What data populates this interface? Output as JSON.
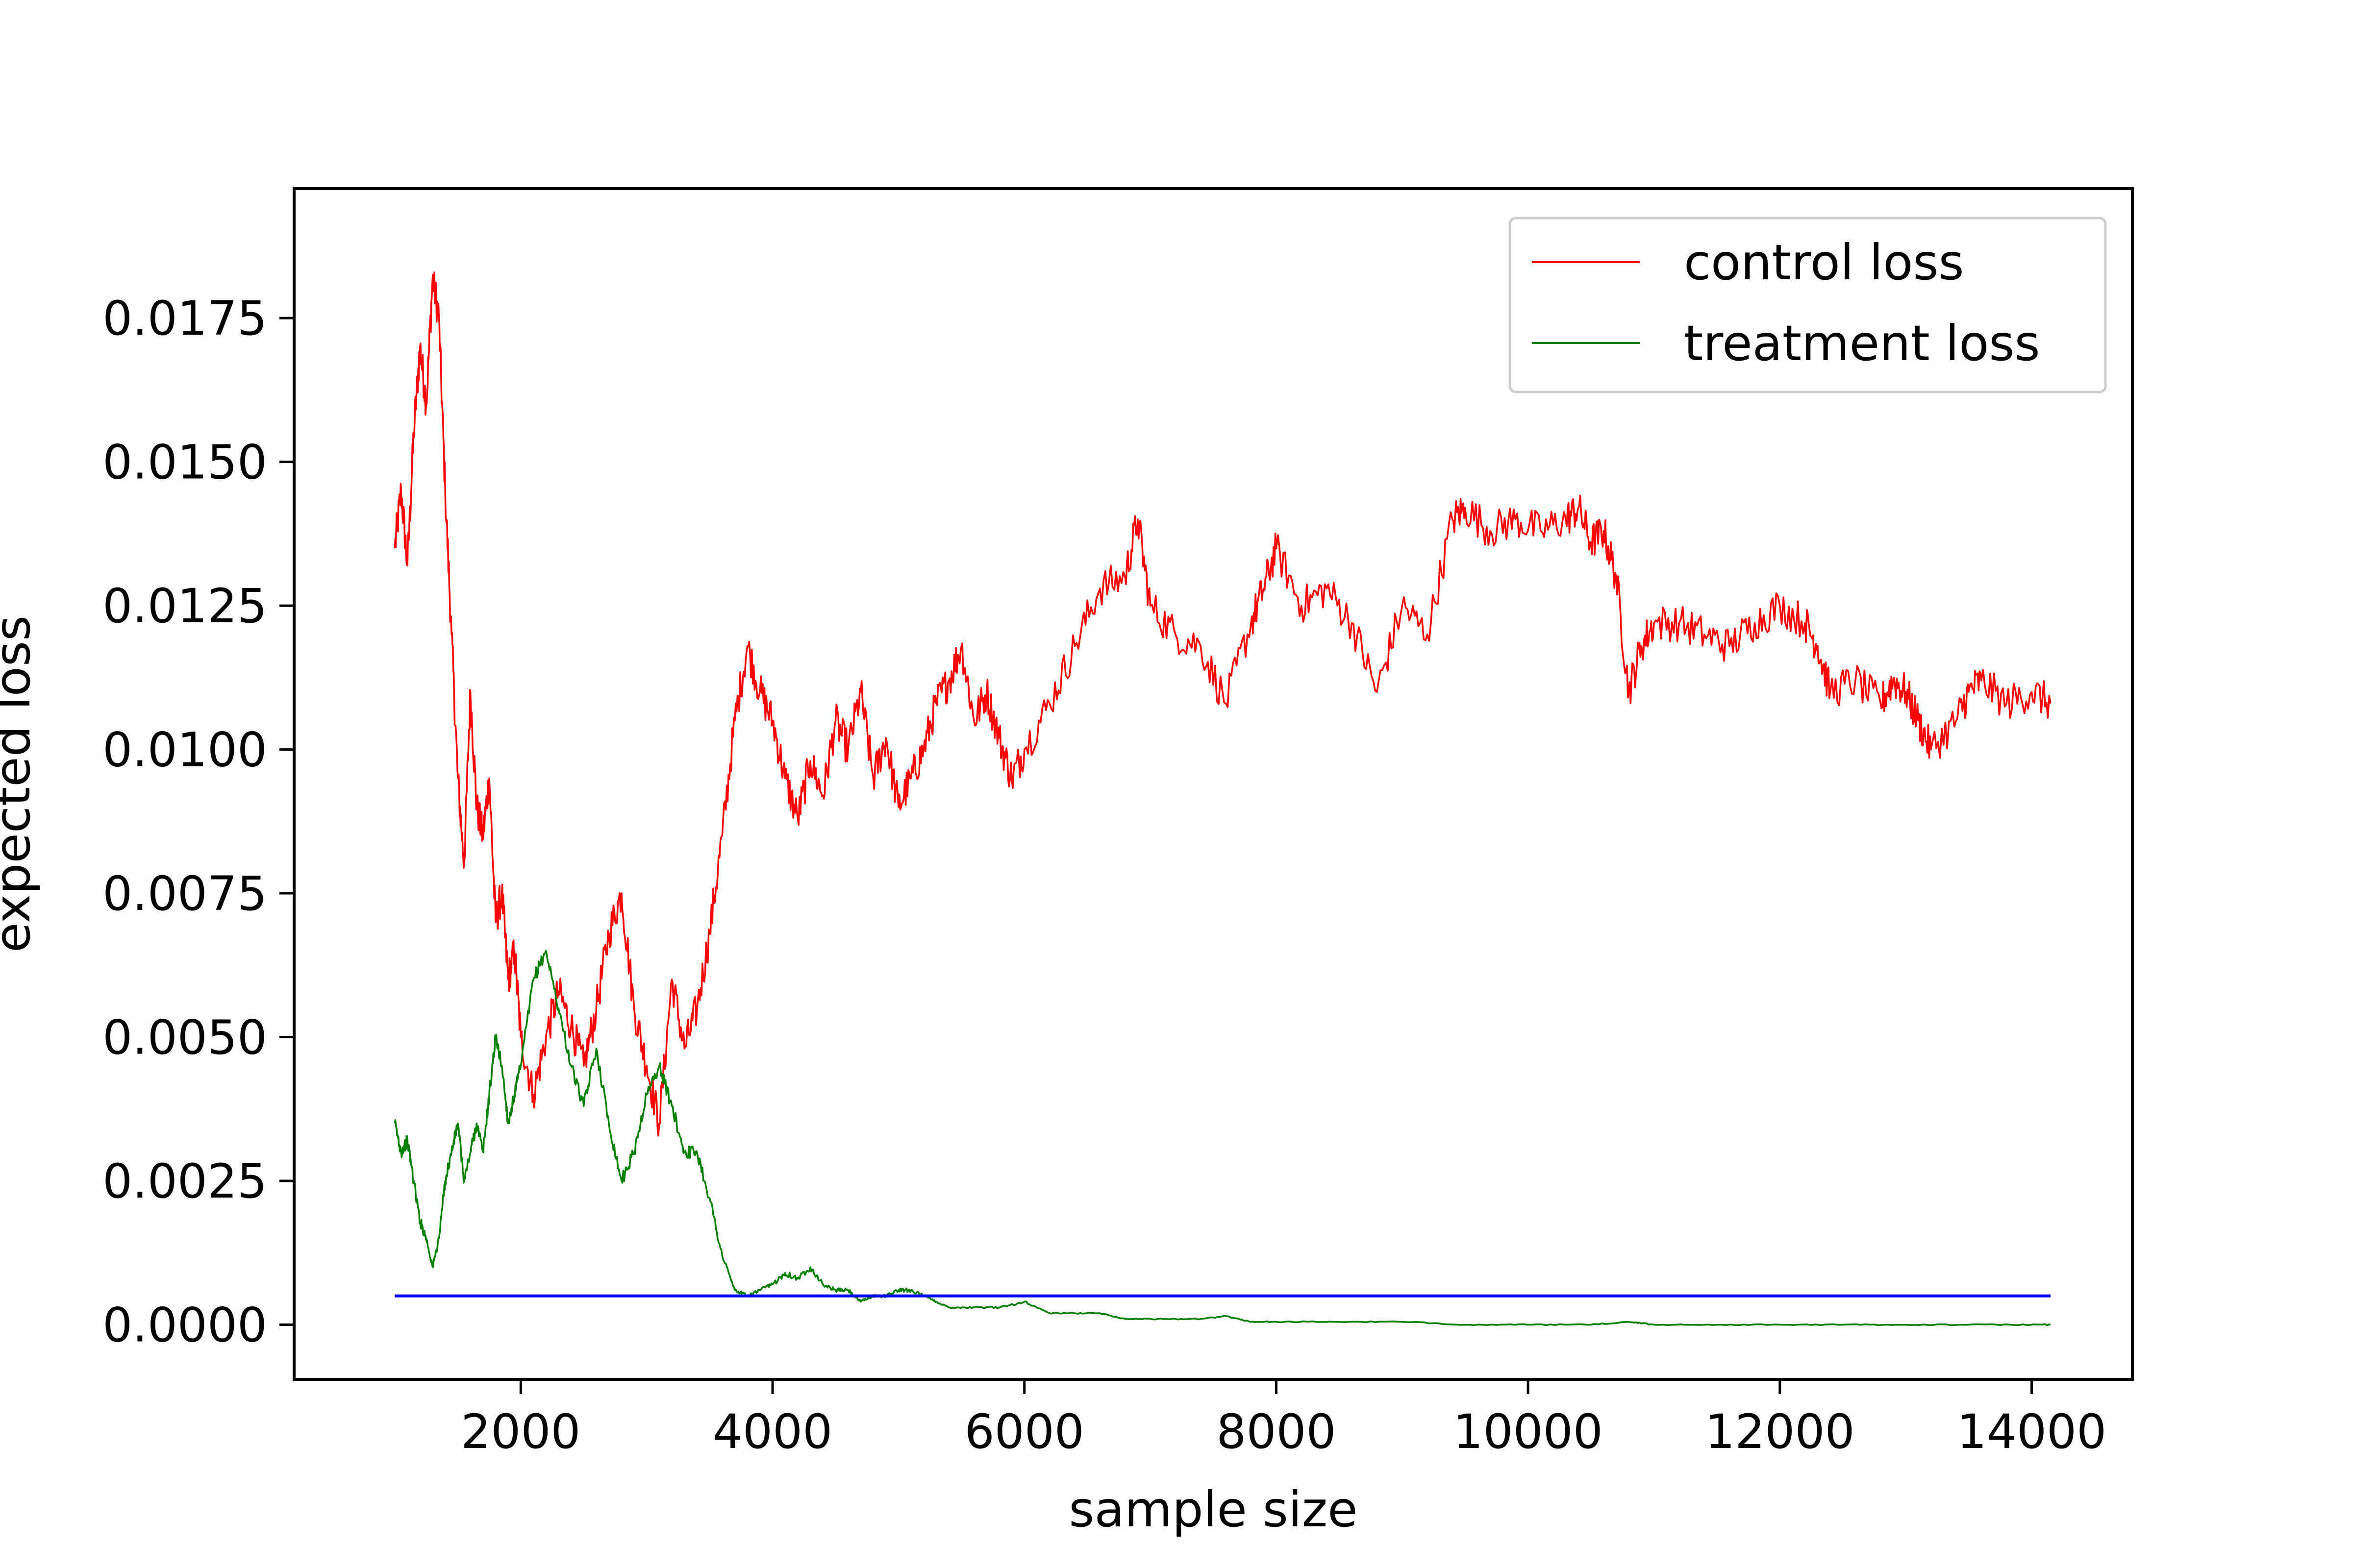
{
  "chart_data": {
    "type": "line",
    "title": "",
    "xlabel": "sample size",
    "ylabel": "expected loss",
    "xlim": [
      200,
      14800
    ],
    "ylim": [
      -0.00095,
      0.01975
    ],
    "x_ticks": [
      2000,
      4000,
      6000,
      8000,
      10000,
      12000,
      14000
    ],
    "x_tick_labels": [
      "2000",
      "4000",
      "6000",
      "8000",
      "10000",
      "12000",
      "14000"
    ],
    "y_ticks": [
      0.0,
      0.0025,
      0.005,
      0.0075,
      0.01,
      0.0125,
      0.015,
      0.0175
    ],
    "y_tick_labels": [
      "0.0000",
      "0.0025",
      "0.0050",
      "0.0075",
      "0.0100",
      "0.0125",
      "0.0150",
      "0.0175"
    ],
    "grid": false,
    "legend": {
      "position": "top-right"
    },
    "series": [
      {
        "name": "control loss",
        "color": "#ff0000",
        "x": [
          1000,
          1050,
          1100,
          1150,
          1200,
          1250,
          1300,
          1350,
          1400,
          1450,
          1500,
          1550,
          1600,
          1650,
          1700,
          1750,
          1800,
          1850,
          1900,
          1950,
          2000,
          2100,
          2200,
          2300,
          2400,
          2500,
          2600,
          2700,
          2800,
          2900,
          3000,
          3100,
          3200,
          3300,
          3400,
          3500,
          3600,
          3700,
          3800,
          3900,
          4000,
          4100,
          4200,
          4300,
          4400,
          4500,
          4600,
          4700,
          4800,
          4900,
          5000,
          5100,
          5200,
          5300,
          5400,
          5500,
          5600,
          5700,
          5800,
          5900,
          6000,
          6200,
          6400,
          6600,
          6800,
          6900,
          7000,
          7200,
          7400,
          7600,
          7800,
          7900,
          8000,
          8200,
          8400,
          8600,
          8800,
          9000,
          9200,
          9400,
          9500,
          9700,
          9900,
          10100,
          10300,
          10400,
          10500,
          10600,
          10700,
          10800,
          10900,
          11000,
          11200,
          11400,
          11600,
          11800,
          12000,
          12200,
          12300,
          12400,
          12600,
          12800,
          12900,
          13000,
          13100,
          13200,
          13400,
          13500,
          13600,
          13800,
          14000,
          14150
        ],
        "y": [
          0.0135,
          0.0145,
          0.0132,
          0.0155,
          0.017,
          0.016,
          0.0182,
          0.0175,
          0.0145,
          0.012,
          0.0095,
          0.008,
          0.011,
          0.009,
          0.0085,
          0.0095,
          0.007,
          0.0075,
          0.006,
          0.0065,
          0.005,
          0.004,
          0.005,
          0.0058,
          0.0052,
          0.0045,
          0.0055,
          0.0068,
          0.0075,
          0.0055,
          0.0045,
          0.0035,
          0.006,
          0.0048,
          0.0055,
          0.0068,
          0.0085,
          0.0105,
          0.0118,
          0.011,
          0.0105,
          0.0095,
          0.0088,
          0.0098,
          0.0092,
          0.0105,
          0.01,
          0.011,
          0.0095,
          0.0102,
          0.009,
          0.0095,
          0.01,
          0.0108,
          0.0112,
          0.0118,
          0.0105,
          0.011,
          0.0102,
          0.0095,
          0.01,
          0.0108,
          0.0118,
          0.0128,
          0.013,
          0.014,
          0.0125,
          0.012,
          0.0118,
          0.0108,
          0.0122,
          0.0128,
          0.0135,
          0.0125,
          0.0128,
          0.0122,
          0.011,
          0.0125,
          0.012,
          0.014,
          0.0142,
          0.0138,
          0.014,
          0.0138,
          0.014,
          0.0142,
          0.0136,
          0.0138,
          0.013,
          0.011,
          0.0118,
          0.0122,
          0.0122,
          0.012,
          0.0118,
          0.0122,
          0.0125,
          0.0122,
          0.0118,
          0.011,
          0.0112,
          0.0108,
          0.0112,
          0.011,
          0.0105,
          0.01,
          0.0105,
          0.011,
          0.0112,
          0.0108,
          0.011,
          0.0108
        ]
      },
      {
        "name": "treatment loss",
        "color": "#008000",
        "x": [
          1000,
          1050,
          1100,
          1150,
          1200,
          1250,
          1300,
          1350,
          1400,
          1450,
          1500,
          1550,
          1600,
          1650,
          1700,
          1750,
          1800,
          1850,
          1900,
          1950,
          2000,
          2100,
          2200,
          2300,
          2400,
          2500,
          2600,
          2700,
          2800,
          2900,
          3000,
          3100,
          3200,
          3300,
          3400,
          3500,
          3600,
          3700,
          3800,
          3900,
          4000,
          4100,
          4200,
          4300,
          4400,
          4500,
          4600,
          4700,
          4800,
          4900,
          5000,
          5100,
          5200,
          5300,
          5400,
          5500,
          5600,
          5800,
          6000,
          6200,
          6400,
          6600,
          6800,
          7000,
          7200,
          7400,
          7600,
          7800,
          8000,
          8500,
          9000,
          9500,
          10000,
          10500,
          10800,
          11000,
          11500,
          12000,
          12500,
          13000,
          13500,
          14000,
          14150
        ],
        "y": [
          0.0035,
          0.003,
          0.0032,
          0.0025,
          0.0018,
          0.0015,
          0.001,
          0.0015,
          0.0025,
          0.003,
          0.0035,
          0.0025,
          0.003,
          0.0035,
          0.003,
          0.004,
          0.005,
          0.0045,
          0.0035,
          0.004,
          0.0045,
          0.006,
          0.0065,
          0.0055,
          0.0045,
          0.0038,
          0.0048,
          0.0035,
          0.0025,
          0.003,
          0.004,
          0.0045,
          0.0038,
          0.003,
          0.003,
          0.0022,
          0.0012,
          0.0006,
          0.0005,
          0.0006,
          0.0007,
          0.0009,
          0.0008,
          0.001,
          0.0007,
          0.0006,
          0.0006,
          0.0004,
          0.0005,
          0.0005,
          0.0006,
          0.0006,
          0.0005,
          0.0004,
          0.0003,
          0.0003,
          0.0003,
          0.0003,
          0.0004,
          0.0002,
          0.0002,
          0.0002,
          0.0001,
          0.0001,
          0.0001,
          0.0001,
          0.00015,
          5e-05,
          5e-05,
          5e-05,
          5e-05,
          0.0,
          0.0,
          0.0,
          5e-05,
          0.0,
          0.0,
          0.0,
          0.0,
          0.0,
          0.0,
          0.0,
          0.0
        ]
      },
      {
        "color": "#0000ff",
        "x": [
          1000,
          14150
        ],
        "y": [
          0.0005,
          0.0005
        ]
      }
    ]
  }
}
